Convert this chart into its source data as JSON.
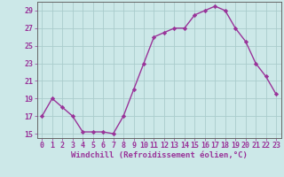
{
  "x": [
    0,
    1,
    2,
    3,
    4,
    5,
    6,
    7,
    8,
    9,
    10,
    11,
    12,
    13,
    14,
    15,
    16,
    17,
    18,
    19,
    20,
    21,
    22,
    23
  ],
  "y": [
    17,
    19,
    18,
    17,
    15.2,
    15.2,
    15.2,
    15,
    17,
    20,
    23,
    26,
    26.5,
    27,
    27,
    28.5,
    29,
    29.5,
    29,
    27,
    25.5,
    23,
    21.5,
    19.5
  ],
  "line_color": "#993399",
  "marker": "D",
  "marker_size": 2.2,
  "bg_color": "#cce8e8",
  "grid_color": "#aacccc",
  "xlabel": "Windchill (Refroidissement éolien,°C)",
  "xlabel_color": "#993399",
  "tick_color": "#993399",
  "axis_color": "#666666",
  "ylim": [
    14.5,
    30.0
  ],
  "xlim": [
    -0.5,
    23.5
  ],
  "yticks": [
    15,
    17,
    19,
    21,
    23,
    25,
    27,
    29
  ],
  "xticks": [
    0,
    1,
    2,
    3,
    4,
    5,
    6,
    7,
    8,
    9,
    10,
    11,
    12,
    13,
    14,
    15,
    16,
    17,
    18,
    19,
    20,
    21,
    22,
    23
  ],
  "tick_fontsize": 6.0,
  "xlabel_fontsize": 6.5,
  "linewidth": 1.0
}
